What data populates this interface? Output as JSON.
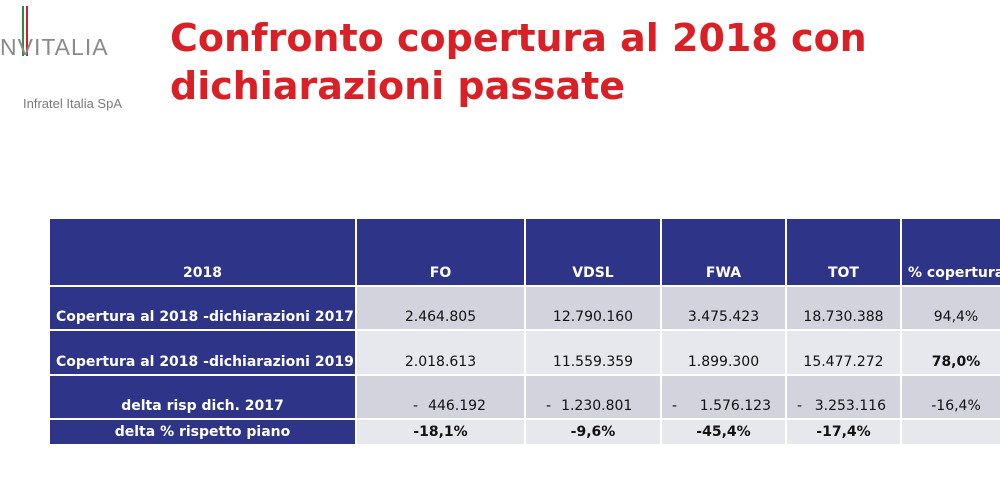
{
  "logo": {
    "word": "NVITALIA",
    "subtitle": "Infratel Italia SpA"
  },
  "title": "Confronto copertura al 2018 con dichiarazioni passate",
  "table": {
    "headers": [
      "2018",
      "FO",
      "VDSL",
      "FWA",
      "TOT",
      "% copertura"
    ],
    "rows": [
      {
        "label": "Copertura al 2018 -dichiarazioni 2017",
        "cells": [
          "2.464.805",
          "12.790.160",
          "3.475.423",
          "18.730.388",
          "94,4%"
        ]
      },
      {
        "label": "Copertura al 2018 -dichiarazioni 2019",
        "cells": [
          "2.018.613",
          "11.559.359",
          "1.899.300",
          "15.477.272",
          "78,0%"
        ]
      },
      {
        "label": "delta risp dich. 2017",
        "cells": [
          "446.192",
          "1.230.801",
          "1.576.123",
          "3.253.116",
          "-16,4%"
        ],
        "sign": "-"
      },
      {
        "label": "delta % rispetto piano",
        "cells": [
          "-18,1%",
          "-9,6%",
          "-45,4%",
          "-17,4%",
          ""
        ]
      }
    ]
  }
}
